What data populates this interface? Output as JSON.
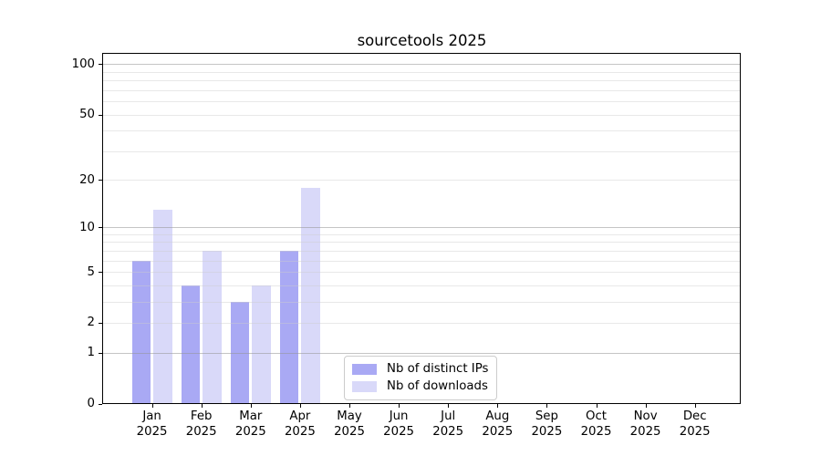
{
  "title": "sourcetools 2025",
  "chart_data": {
    "type": "bar",
    "title": "sourcetools 2025",
    "categories": [
      "Jan",
      "Feb",
      "Mar",
      "Apr",
      "May",
      "Jun",
      "Jul",
      "Aug",
      "Sep",
      "Oct",
      "Nov",
      "Dec"
    ],
    "category_year": "2025",
    "series": [
      {
        "name": "Nb of distinct IPs",
        "color": "#a9a9f4",
        "values": [
          6,
          4,
          3,
          7,
          0,
          0,
          0,
          0,
          0,
          0,
          0,
          0
        ]
      },
      {
        "name": "Nb of downloads",
        "color": "#d9d9f9",
        "values": [
          13,
          7,
          4,
          18,
          0,
          0,
          0,
          0,
          0,
          0,
          0,
          0
        ]
      }
    ],
    "yscale": "log10(1+y)",
    "ylim": [
      0,
      116
    ],
    "yticks": [
      0,
      1,
      2,
      5,
      10,
      20,
      50,
      100
    ],
    "major_gridlines": [
      1,
      10,
      100
    ],
    "minor_gridlines": [
      2,
      3,
      4,
      5,
      6,
      7,
      8,
      9,
      20,
      30,
      40,
      50,
      60,
      70,
      80,
      90
    ],
    "grid": true,
    "legend": {
      "position": "lower center",
      "entries": [
        "Nb of distinct IPs",
        "Nb of downloads"
      ]
    },
    "colors": {
      "bar_distinct_ips": "#a9a9f4",
      "bar_downloads": "#d9d9f9",
      "minor_grid": "#e8e8e8",
      "major_grid": "#c7c7c7",
      "axis": "#000000",
      "background": "#ffffff"
    }
  }
}
